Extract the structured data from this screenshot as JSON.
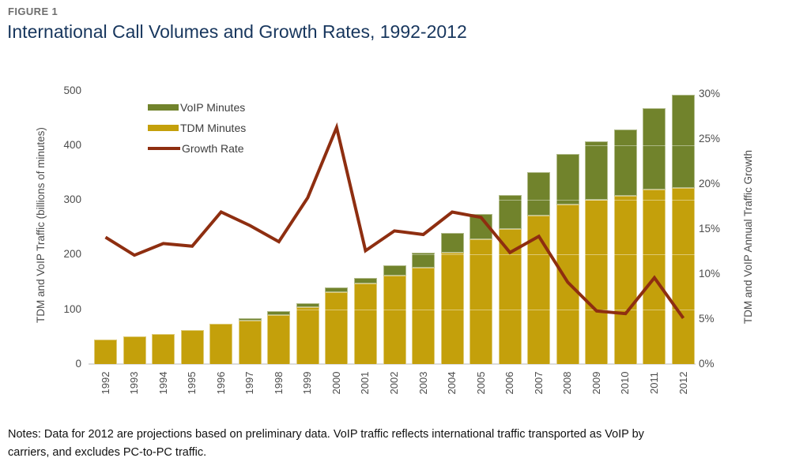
{
  "figure_label": "FIGURE 1",
  "title": "International Call Volumes and Growth Rates, 1992-2012",
  "notes": {
    "line1": "Notes: Data for 2012 are projections based on preliminary data. VoIP traffic reflects international traffic transported as VoIP by",
    "line2": "carriers, and excludes PC-to-PC traffic."
  },
  "colors": {
    "tdm_bar": "#C4A00B",
    "voip_bar": "#71832C",
    "growth_line": "#8E2E10",
    "title_text": "#17365D",
    "figure_label_text": "#6E6E6E",
    "axis_text": "#4C4C4C",
    "baseline": "#DCDCDC"
  },
  "chart_data": {
    "type": "combo (stacked bar + line)",
    "title": "International Call Volumes and Growth Rates, 1992-2012",
    "grid": "faint horizontal gridlines visible over bars only",
    "legend_position": "top-left inside plot",
    "categories": [
      "1992",
      "1993",
      "1994",
      "1995",
      "1996",
      "1997",
      "1998",
      "1999",
      "2000",
      "2001",
      "2002",
      "2003",
      "2004",
      "2005",
      "2006",
      "2007",
      "2008",
      "2009",
      "2010",
      "2011",
      "2012"
    ],
    "series": [
      {
        "name": "TDM Minutes",
        "type": "bar",
        "stacked": true,
        "color": "#C4A00B",
        "values": [
          45,
          51,
          55,
          62,
          73,
          79,
          90,
          104,
          132,
          147,
          161,
          176,
          204,
          228,
          247,
          271,
          292,
          300,
          308,
          319,
          322
        ]
      },
      {
        "name": "VoIP Minutes",
        "type": "bar",
        "stacked": true,
        "color": "#71832C",
        "values": [
          0,
          0,
          0,
          0,
          0,
          5,
          6,
          7,
          8,
          10,
          19,
          28,
          35,
          46,
          62,
          79,
          92,
          107,
          121,
          149,
          170
        ]
      },
      {
        "name": "Growth Rate",
        "type": "line",
        "axis": "right",
        "color": "#8E2E10",
        "values_percent": [
          14.1,
          12.1,
          13.4,
          13.1,
          16.9,
          15.4,
          13.6,
          18.5,
          26.3,
          12.6,
          14.8,
          14.4,
          16.9,
          16.3,
          12.4,
          14.2,
          9.1,
          5.9,
          5.6,
          9.6,
          5.1
        ]
      }
    ],
    "left_axis": {
      "title": "TDM and VoIP Traffic (billions of minutes)",
      "ticks": [
        0,
        100,
        200,
        300,
        400,
        500
      ],
      "range": [
        0,
        500
      ]
    },
    "right_axis": {
      "title": "TDM and VoIP Annual Traffic Growth",
      "ticks": [
        {
          "value": 0,
          "label": "0%"
        },
        {
          "value": 5,
          "label": "5%"
        },
        {
          "value": 10,
          "label": "10%"
        },
        {
          "value": 15,
          "label": "15%"
        },
        {
          "value": 20,
          "label": "20%"
        },
        {
          "value": 25,
          "label": "25%"
        },
        {
          "value": 30,
          "label": "30%"
        }
      ],
      "range": [
        0,
        30
      ]
    },
    "legend": [
      {
        "label": "VoIP Minutes",
        "swatch": "bar",
        "color": "#71832C"
      },
      {
        "label": "TDM Minutes",
        "swatch": "bar",
        "color": "#C4A00B"
      },
      {
        "label": "Growth Rate",
        "swatch": "line",
        "color": "#8E2E10"
      }
    ]
  }
}
